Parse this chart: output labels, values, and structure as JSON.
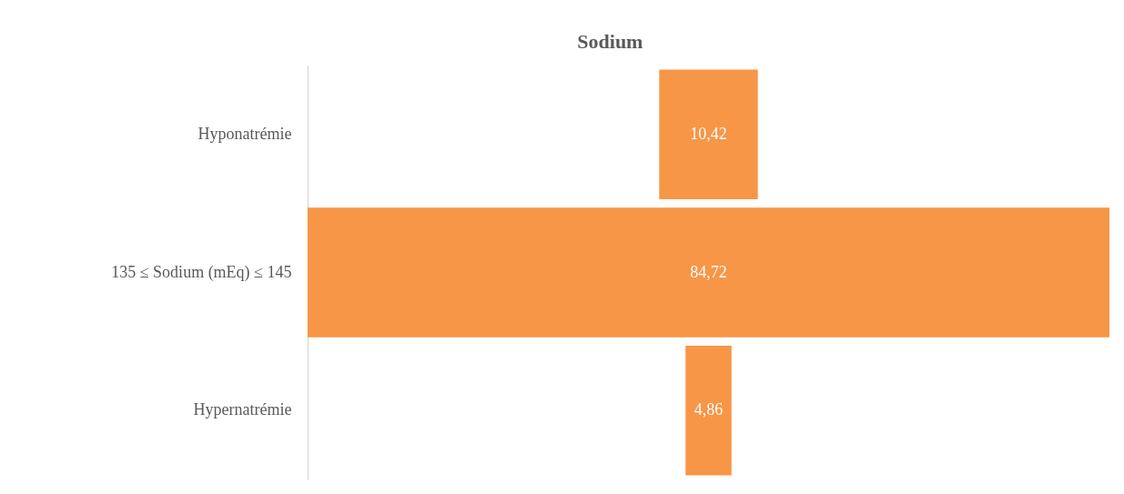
{
  "chart_data": {
    "type": "other",
    "title": "Sodium",
    "categories": [
      "Hyponatrémie",
      "135 ≤ Sodium (mEq) ≤ 145",
      "Hypernatrémie"
    ],
    "values": [
      10.42,
      84.72,
      4.86
    ],
    "value_labels": [
      "10,42",
      "84,72",
      "4,86"
    ],
    "color": "#f79646"
  }
}
